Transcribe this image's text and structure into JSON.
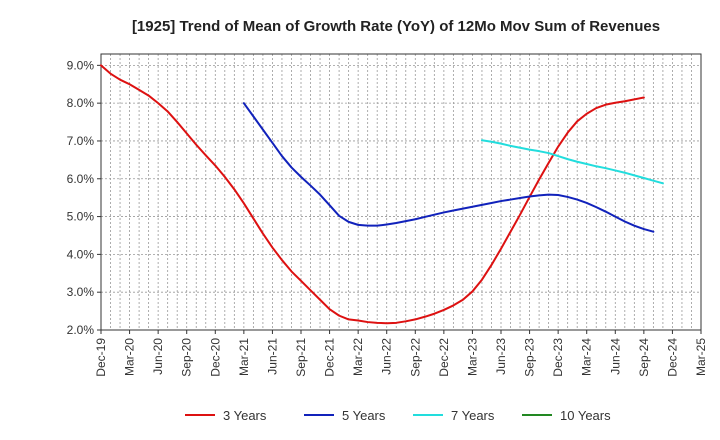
{
  "chart_data": {
    "type": "line",
    "title": "[1925]  Trend of Mean of Growth Rate (YoY) of 12Mo Mov Sum of Revenues",
    "xlabel": "",
    "ylabel": "",
    "ylim": [
      2.0,
      9.3
    ],
    "y_ticks": [
      2.0,
      3.0,
      4.0,
      5.0,
      6.0,
      7.0,
      8.0,
      9.0
    ],
    "y_tick_labels": [
      "2.0%",
      "3.0%",
      "4.0%",
      "5.0%",
      "6.0%",
      "7.0%",
      "8.0%",
      "9.0%"
    ],
    "x_tick_labels": [
      "Dec-19",
      "Mar-20",
      "Jun-20",
      "Sep-20",
      "Dec-20",
      "Mar-21",
      "Jun-21",
      "Sep-21",
      "Dec-21",
      "Mar-22",
      "Jun-22",
      "Sep-22",
      "Dec-22",
      "Mar-23",
      "Jun-23",
      "Sep-23",
      "Dec-23",
      "Mar-24",
      "Jun-24",
      "Sep-24",
      "Dec-24",
      "Mar-25"
    ],
    "grid": true,
    "legend_position": "bottom",
    "series": [
      {
        "name": "3 Years",
        "color": "#dd1111",
        "start_month": 0,
        "values": [
          9.0,
          8.78,
          8.62,
          8.5,
          8.35,
          8.2,
          8.0,
          7.78,
          7.5,
          7.2,
          6.9,
          6.62,
          6.35,
          6.05,
          5.72,
          5.35,
          4.95,
          4.55,
          4.18,
          3.85,
          3.55,
          3.3,
          3.05,
          2.8,
          2.55,
          2.38,
          2.28,
          2.25,
          2.21,
          2.19,
          2.18,
          2.19,
          2.23,
          2.28,
          2.35,
          2.43,
          2.53,
          2.65,
          2.8,
          3.02,
          3.33,
          3.72,
          4.15,
          4.6,
          5.05,
          5.52,
          5.98,
          6.42,
          6.85,
          7.22,
          7.52,
          7.72,
          7.87,
          7.96,
          8.01,
          8.05,
          8.1,
          8.15
        ]
      },
      {
        "name": "5 Years",
        "color": "#1122bb",
        "start_month": 15,
        "values": [
          8.0,
          7.65,
          7.3,
          6.95,
          6.6,
          6.3,
          6.05,
          5.82,
          5.58,
          5.3,
          5.02,
          4.86,
          4.78,
          4.76,
          4.76,
          4.79,
          4.83,
          4.88,
          4.93,
          4.99,
          5.05,
          5.11,
          5.16,
          5.21,
          5.26,
          5.31,
          5.36,
          5.41,
          5.45,
          5.49,
          5.53,
          5.56,
          5.58,
          5.57,
          5.52,
          5.45,
          5.36,
          5.25,
          5.13,
          5.0,
          4.87,
          4.76,
          4.67,
          4.6
        ]
      },
      {
        "name": "7 Years",
        "color": "#22dddd",
        "start_month": 40,
        "values": [
          7.02,
          6.98,
          6.93,
          6.87,
          6.82,
          6.77,
          6.73,
          6.68,
          6.6,
          6.52,
          6.45,
          6.39,
          6.33,
          6.28,
          6.22,
          6.16,
          6.09,
          6.02,
          5.95,
          5.88
        ]
      },
      {
        "name": "10 Years",
        "color": "#228822",
        "start_month": 0,
        "values": []
      }
    ]
  }
}
